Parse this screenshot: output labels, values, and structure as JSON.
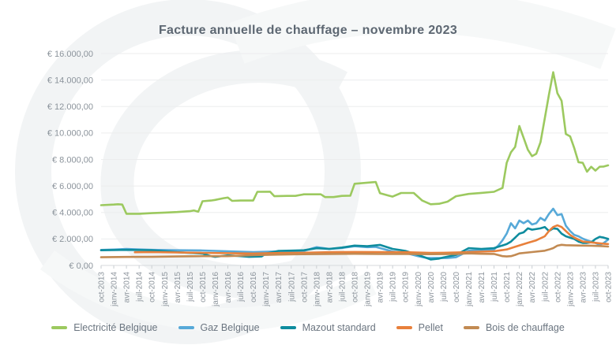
{
  "chart_data": {
    "type": "line",
    "title": "Facture annuelle de chauffage – novembre 2023",
    "legend_position": "bottom",
    "grid": true,
    "y_axis": {
      "min": 0,
      "max": 16000,
      "step": 2000,
      "labels": [
        "€ 16.000,00",
        "€ 14.000,00",
        "€ 12.000,00",
        "€ 10.000,00",
        "€ 8.000,00",
        "€ 6.000,00",
        "€ 4.000,00",
        "€ 2.000,00",
        "€ 0,00"
      ]
    },
    "x_axis": {
      "months_per_label": 3,
      "total_months": 120,
      "labels": [
        "oct-2013",
        "janv-2014",
        "avr-2014",
        "juil-2014",
        "oct-2014",
        "janv-2015",
        "avr-2015",
        "juil-2015",
        "oct-2015",
        "janv-2016",
        "avr-2016",
        "juil-2016",
        "oct-2016",
        "janv-2017",
        "avr-2017",
        "juil-2017",
        "oct-2017",
        "janv-2018",
        "avr-2018",
        "juil-2018",
        "oct-2018",
        "janv-2019",
        "avr-2019",
        "juil-2019",
        "oct-2019",
        "janv-2020",
        "avr-2020",
        "juil-2020",
        "oct-2020",
        "janv-2021",
        "avr-2021",
        "juil-2021",
        "oct-2021",
        "janv-2022",
        "avr-2022",
        "juil-2022",
        "oct-2022",
        "janv-2023",
        "avr-2023",
        "juil-2023",
        "oct-2023"
      ]
    },
    "series": [
      {
        "id": "electricite-belgique",
        "name": "Electricité Belgique",
        "color": "#9cc95f",
        "points": [
          [
            0,
            4550
          ],
          [
            3,
            4600
          ],
          [
            4,
            4620
          ],
          [
            5,
            4600
          ],
          [
            6,
            3900
          ],
          [
            9,
            3900
          ],
          [
            12,
            3950
          ],
          [
            15,
            3990
          ],
          [
            18,
            4030
          ],
          [
            21,
            4100
          ],
          [
            22,
            4150
          ],
          [
            23,
            4060
          ],
          [
            24,
            4850
          ],
          [
            26,
            4900
          ],
          [
            27,
            4950
          ],
          [
            29,
            5080
          ],
          [
            30,
            5130
          ],
          [
            31,
            4880
          ],
          [
            33,
            4900
          ],
          [
            36,
            4900
          ],
          [
            37,
            5560
          ],
          [
            40,
            5570
          ],
          [
            41,
            5230
          ],
          [
            44,
            5250
          ],
          [
            46,
            5250
          ],
          [
            48,
            5370
          ],
          [
            52,
            5370
          ],
          [
            53,
            5160
          ],
          [
            55,
            5160
          ],
          [
            57,
            5250
          ],
          [
            59,
            5270
          ],
          [
            60,
            6170
          ],
          [
            63,
            6250
          ],
          [
            65,
            6300
          ],
          [
            66,
            5460
          ],
          [
            68,
            5280
          ],
          [
            69,
            5200
          ],
          [
            71,
            5470
          ],
          [
            74,
            5470
          ],
          [
            76,
            4900
          ],
          [
            78,
            4620
          ],
          [
            80,
            4660
          ],
          [
            82,
            4820
          ],
          [
            84,
            5230
          ],
          [
            87,
            5400
          ],
          [
            90,
            5480
          ],
          [
            93,
            5560
          ],
          [
            95,
            5850
          ],
          [
            96,
            7750
          ],
          [
            97,
            8550
          ],
          [
            98,
            8950
          ],
          [
            99,
            10530
          ],
          [
            100,
            9640
          ],
          [
            101,
            8740
          ],
          [
            102,
            8250
          ],
          [
            103,
            8430
          ],
          [
            104,
            9300
          ],
          [
            105,
            11100
          ],
          [
            106,
            12900
          ],
          [
            107,
            14590
          ],
          [
            108,
            13000
          ],
          [
            109,
            12430
          ],
          [
            110,
            9930
          ],
          [
            111,
            9750
          ],
          [
            112,
            8850
          ],
          [
            113,
            7790
          ],
          [
            114,
            7750
          ],
          [
            115,
            7080
          ],
          [
            116,
            7450
          ],
          [
            117,
            7160
          ],
          [
            118,
            7450
          ],
          [
            119,
            7470
          ],
          [
            120,
            7560
          ]
        ]
      },
      {
        "id": "gaz-belgique",
        "name": "Gaz Belgique",
        "color": "#57a9d8",
        "points": [
          [
            0,
            1170
          ],
          [
            3,
            1200
          ],
          [
            6,
            1250
          ],
          [
            9,
            1210
          ],
          [
            12,
            1180
          ],
          [
            18,
            1150
          ],
          [
            24,
            1130
          ],
          [
            30,
            1070
          ],
          [
            36,
            1010
          ],
          [
            42,
            1060
          ],
          [
            48,
            1100
          ],
          [
            51,
            1380
          ],
          [
            54,
            1250
          ],
          [
            57,
            1320
          ],
          [
            60,
            1450
          ],
          [
            63,
            1380
          ],
          [
            65,
            1400
          ],
          [
            69,
            1050
          ],
          [
            72,
            950
          ],
          [
            75,
            700
          ],
          [
            77,
            570
          ],
          [
            80,
            560
          ],
          [
            82,
            560
          ],
          [
            84,
            620
          ],
          [
            87,
            1110
          ],
          [
            90,
            1150
          ],
          [
            93,
            1210
          ],
          [
            94,
            1500
          ],
          [
            95,
            1900
          ],
          [
            96,
            2400
          ],
          [
            97,
            3190
          ],
          [
            98,
            2800
          ],
          [
            99,
            3390
          ],
          [
            100,
            3190
          ],
          [
            101,
            3390
          ],
          [
            102,
            3090
          ],
          [
            103,
            3190
          ],
          [
            104,
            3590
          ],
          [
            105,
            3390
          ],
          [
            106,
            3890
          ],
          [
            107,
            4280
          ],
          [
            108,
            3800
          ],
          [
            109,
            3880
          ],
          [
            110,
            3000
          ],
          [
            111,
            2600
          ],
          [
            112,
            2300
          ],
          [
            113,
            2200
          ],
          [
            114,
            2020
          ],
          [
            115,
            1900
          ],
          [
            116,
            1800
          ],
          [
            117,
            1700
          ],
          [
            118,
            1550
          ],
          [
            119,
            1700
          ],
          [
            120,
            1950
          ]
        ]
      },
      {
        "id": "mazout-standard",
        "name": "Mazout standard",
        "color": "#0e8c9e",
        "points": [
          [
            0,
            1150
          ],
          [
            6,
            1180
          ],
          [
            12,
            1150
          ],
          [
            18,
            1000
          ],
          [
            24,
            900
          ],
          [
            26,
            700
          ],
          [
            27,
            650
          ],
          [
            30,
            760
          ],
          [
            33,
            700
          ],
          [
            35,
            650
          ],
          [
            38,
            680
          ],
          [
            39,
            900
          ],
          [
            42,
            1100
          ],
          [
            45,
            1120
          ],
          [
            48,
            1150
          ],
          [
            51,
            1300
          ],
          [
            54,
            1250
          ],
          [
            57,
            1350
          ],
          [
            60,
            1500
          ],
          [
            63,
            1450
          ],
          [
            66,
            1550
          ],
          [
            69,
            1250
          ],
          [
            72,
            1100
          ],
          [
            75,
            800
          ],
          [
            78,
            450
          ],
          [
            80,
            520
          ],
          [
            81,
            600
          ],
          [
            84,
            800
          ],
          [
            87,
            1310
          ],
          [
            90,
            1250
          ],
          [
            93,
            1310
          ],
          [
            95,
            1510
          ],
          [
            96,
            1610
          ],
          [
            97,
            1800
          ],
          [
            98,
            2100
          ],
          [
            99,
            2400
          ],
          [
            100,
            2500
          ],
          [
            101,
            2800
          ],
          [
            102,
            2700
          ],
          [
            104,
            2800
          ],
          [
            105,
            2900
          ],
          [
            106,
            2600
          ],
          [
            107,
            2800
          ],
          [
            108,
            2760
          ],
          [
            109,
            2400
          ],
          [
            110,
            2200
          ],
          [
            111,
            2100
          ],
          [
            112,
            2000
          ],
          [
            113,
            1800
          ],
          [
            114,
            1700
          ],
          [
            115,
            1700
          ],
          [
            116,
            1750
          ],
          [
            117,
            2000
          ],
          [
            118,
            2160
          ],
          [
            119,
            2100
          ],
          [
            120,
            2010
          ]
        ]
      },
      {
        "id": "pellet",
        "name": "Pellet",
        "color": "#e8803b",
        "points": [
          [
            8,
            1000
          ],
          [
            12,
            1010
          ],
          [
            18,
            980
          ],
          [
            24,
            950
          ],
          [
            30,
            930
          ],
          [
            36,
            900
          ],
          [
            42,
            940
          ],
          [
            48,
            960
          ],
          [
            54,
            1000
          ],
          [
            60,
            1020
          ],
          [
            66,
            1010
          ],
          [
            72,
            1000
          ],
          [
            78,
            950
          ],
          [
            81,
            960
          ],
          [
            84,
            980
          ],
          [
            87,
            1010
          ],
          [
            90,
            1040
          ],
          [
            93,
            1070
          ],
          [
            96,
            1210
          ],
          [
            97,
            1310
          ],
          [
            99,
            1510
          ],
          [
            101,
            1710
          ],
          [
            103,
            1900
          ],
          [
            105,
            2200
          ],
          [
            106,
            2600
          ],
          [
            107,
            2900
          ],
          [
            108,
            3030
          ],
          [
            109,
            2900
          ],
          [
            110,
            2600
          ],
          [
            111,
            2300
          ],
          [
            112,
            2100
          ],
          [
            113,
            1950
          ],
          [
            114,
            1800
          ],
          [
            115,
            1770
          ],
          [
            117,
            1710
          ],
          [
            118,
            1670
          ],
          [
            119,
            1640
          ],
          [
            120,
            1620
          ]
        ]
      },
      {
        "id": "bois-de-chauffage",
        "name": "Bois de chauffage",
        "color": "#c28a52",
        "points": [
          [
            0,
            620
          ],
          [
            6,
            640
          ],
          [
            12,
            650
          ],
          [
            18,
            680
          ],
          [
            24,
            700
          ],
          [
            30,
            700
          ],
          [
            36,
            780
          ],
          [
            42,
            820
          ],
          [
            48,
            850
          ],
          [
            54,
            870
          ],
          [
            60,
            880
          ],
          [
            66,
            870
          ],
          [
            72,
            860
          ],
          [
            78,
            850
          ],
          [
            84,
            860
          ],
          [
            87,
            910
          ],
          [
            90,
            880
          ],
          [
            93,
            870
          ],
          [
            95,
            700
          ],
          [
            96,
            680
          ],
          [
            97,
            700
          ],
          [
            98,
            800
          ],
          [
            99,
            910
          ],
          [
            102,
            1010
          ],
          [
            105,
            1110
          ],
          [
            106,
            1200
          ],
          [
            107,
            1310
          ],
          [
            108,
            1490
          ],
          [
            109,
            1560
          ],
          [
            110,
            1530
          ],
          [
            112,
            1510
          ],
          [
            114,
            1500
          ],
          [
            116,
            1490
          ],
          [
            118,
            1470
          ],
          [
            120,
            1430
          ]
        ]
      }
    ]
  }
}
